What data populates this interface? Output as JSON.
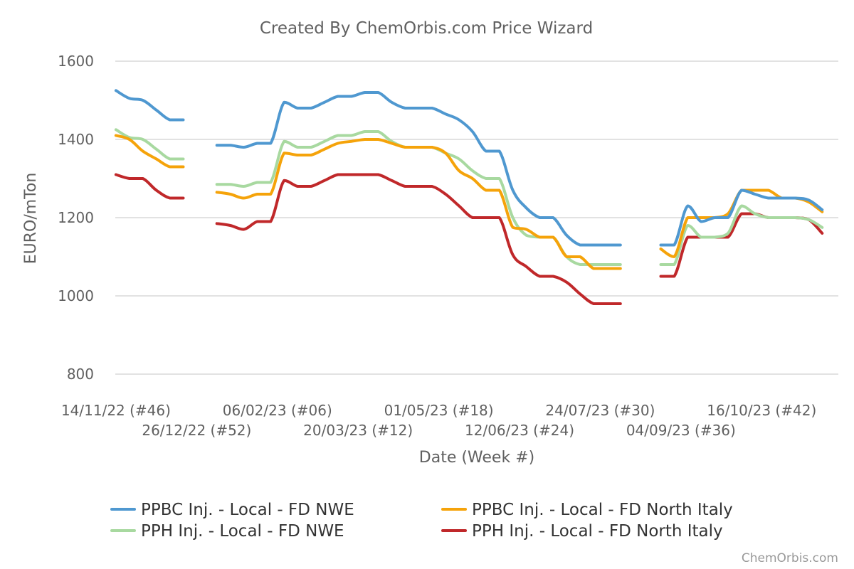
{
  "chart_data": {
    "type": "line",
    "title": "Created By ChemOrbis.com Price Wizard",
    "xlabel": "Date (Week #)",
    "ylabel": "EURO/mTon",
    "credit": "ChemOrbis.com",
    "ylim": [
      800,
      1600
    ],
    "yticks": [
      800,
      1000,
      1200,
      1400,
      1600
    ],
    "grid": true,
    "legend_position": "bottom",
    "x_ticks": [
      {
        "week": 0,
        "label": "14/11/22 (#46)"
      },
      {
        "week": 6,
        "label": "26/12/22 (#52)"
      },
      {
        "week": 12,
        "label": "06/02/23 (#06)"
      },
      {
        "week": 18,
        "label": "20/03/23 (#12)"
      },
      {
        "week": 24,
        "label": "01/05/23 (#18)"
      },
      {
        "week": 30,
        "label": "12/06/23 (#24)"
      },
      {
        "week": 36,
        "label": "24/07/23 (#30)"
      },
      {
        "week": 42,
        "label": "04/09/23 (#36)"
      },
      {
        "week": 48,
        "label": "16/10/23 (#42)"
      }
    ],
    "series": [
      {
        "name": "PPBC Inj. - Local - FD NWE",
        "color": "#4f98d0",
        "segments": [
          [
            [
              0,
              1525
            ],
            [
              1,
              1505
            ],
            [
              2,
              1500
            ],
            [
              3,
              1475
            ],
            [
              4,
              1450
            ],
            [
              5,
              1450
            ]
          ],
          [
            [
              7.5,
              1385
            ],
            [
              8.5,
              1385
            ],
            [
              9.5,
              1380
            ],
            [
              10.5,
              1390
            ],
            [
              11.5,
              1390
            ],
            [
              12.5,
              1495
            ],
            [
              13.5,
              1480
            ],
            [
              14.5,
              1480
            ],
            [
              15.5,
              1495
            ],
            [
              16.5,
              1510
            ],
            [
              17.5,
              1510
            ],
            [
              18.5,
              1520
            ],
            [
              19.5,
              1520
            ],
            [
              20.5,
              1495
            ],
            [
              21.5,
              1480
            ],
            [
              22.5,
              1480
            ],
            [
              23.5,
              1480
            ],
            [
              24.5,
              1465
            ],
            [
              25.5,
              1450
            ],
            [
              26.5,
              1420
            ],
            [
              27.5,
              1370
            ],
            [
              28.5,
              1370
            ],
            [
              29.5,
              1270
            ],
            [
              30.5,
              1225
            ],
            [
              31.5,
              1200
            ],
            [
              32.5,
              1200
            ],
            [
              33.5,
              1155
            ],
            [
              34.5,
              1130
            ],
            [
              35.5,
              1130
            ],
            [
              36.5,
              1130
            ],
            [
              37.5,
              1130
            ]
          ],
          [
            [
              40.5,
              1130
            ],
            [
              41.5,
              1130
            ],
            [
              42.5,
              1230
            ],
            [
              43.5,
              1190
            ],
            [
              44.5,
              1200
            ],
            [
              45.5,
              1200
            ],
            [
              46.5,
              1270
            ],
            [
              47.5,
              1260
            ],
            [
              48.5,
              1250
            ],
            [
              49.5,
              1250
            ],
            [
              50.5,
              1250
            ],
            [
              51.5,
              1245
            ],
            [
              52.5,
              1220
            ]
          ]
        ]
      },
      {
        "name": "PPBC Inj. - Local - FD North Italy",
        "color": "#f5a30a",
        "segments": [
          [
            [
              0,
              1410
            ],
            [
              1,
              1400
            ],
            [
              2,
              1370
            ],
            [
              3,
              1350
            ],
            [
              4,
              1330
            ],
            [
              5,
              1330
            ]
          ],
          [
            [
              7.5,
              1265
            ],
            [
              8.5,
              1260
            ],
            [
              9.5,
              1250
            ],
            [
              10.5,
              1260
            ],
            [
              11.5,
              1260
            ],
            [
              12.5,
              1365
            ],
            [
              13.5,
              1360
            ],
            [
              14.5,
              1360
            ],
            [
              15.5,
              1375
            ],
            [
              16.5,
              1390
            ],
            [
              17.5,
              1395
            ],
            [
              18.5,
              1400
            ],
            [
              19.5,
              1400
            ],
            [
              20.5,
              1390
            ],
            [
              21.5,
              1380
            ],
            [
              22.5,
              1380
            ],
            [
              23.5,
              1380
            ],
            [
              24.5,
              1365
            ],
            [
              25.5,
              1320
            ],
            [
              26.5,
              1300
            ],
            [
              27.5,
              1270
            ],
            [
              28.5,
              1270
            ],
            [
              29.5,
              1175
            ],
            [
              30.5,
              1170
            ],
            [
              31.5,
              1150
            ],
            [
              32.5,
              1150
            ],
            [
              33.5,
              1100
            ],
            [
              34.5,
              1100
            ],
            [
              35.5,
              1070
            ],
            [
              36.5,
              1070
            ],
            [
              37.5,
              1070
            ]
          ],
          [
            [
              40.5,
              1120
            ],
            [
              41.5,
              1100
            ],
            [
              42.5,
              1200
            ],
            [
              43.5,
              1200
            ],
            [
              44.5,
              1200
            ],
            [
              45.5,
              1210
            ],
            [
              46.5,
              1270
            ],
            [
              47.5,
              1270
            ],
            [
              48.5,
              1270
            ],
            [
              49.5,
              1250
            ],
            [
              50.5,
              1250
            ],
            [
              51.5,
              1240
            ],
            [
              52.5,
              1215
            ]
          ]
        ]
      },
      {
        "name": "PPH Inj. - Local - FD NWE",
        "color": "#a8d9a0",
        "segments": [
          [
            [
              0,
              1425
            ],
            [
              1,
              1405
            ],
            [
              2,
              1400
            ],
            [
              3,
              1375
            ],
            [
              4,
              1350
            ],
            [
              5,
              1350
            ]
          ],
          [
            [
              7.5,
              1285
            ],
            [
              8.5,
              1285
            ],
            [
              9.5,
              1280
            ],
            [
              10.5,
              1290
            ],
            [
              11.5,
              1290
            ],
            [
              12.5,
              1395
            ],
            [
              13.5,
              1380
            ],
            [
              14.5,
              1380
            ],
            [
              15.5,
              1395
            ],
            [
              16.5,
              1410
            ],
            [
              17.5,
              1410
            ],
            [
              18.5,
              1420
            ],
            [
              19.5,
              1420
            ],
            [
              20.5,
              1395
            ],
            [
              21.5,
              1380
            ],
            [
              22.5,
              1380
            ],
            [
              23.5,
              1380
            ],
            [
              24.5,
              1365
            ],
            [
              25.5,
              1350
            ],
            [
              26.5,
              1320
            ],
            [
              27.5,
              1300
            ],
            [
              28.5,
              1300
            ],
            [
              29.5,
              1200
            ],
            [
              30.5,
              1155
            ],
            [
              31.5,
              1150
            ],
            [
              32.5,
              1150
            ],
            [
              33.5,
              1100
            ],
            [
              34.5,
              1080
            ],
            [
              35.5,
              1080
            ],
            [
              36.5,
              1080
            ],
            [
              37.5,
              1080
            ]
          ],
          [
            [
              40.5,
              1080
            ],
            [
              41.5,
              1080
            ],
            [
              42.5,
              1180
            ],
            [
              43.5,
              1150
            ],
            [
              44.5,
              1150
            ],
            [
              45.5,
              1160
            ],
            [
              46.5,
              1230
            ],
            [
              47.5,
              1210
            ],
            [
              48.5,
              1200
            ],
            [
              49.5,
              1200
            ],
            [
              50.5,
              1200
            ],
            [
              51.5,
              1195
            ],
            [
              52.5,
              1175
            ]
          ]
        ]
      },
      {
        "name": "PPH Inj. - Local - FD North Italy",
        "color": "#c0282a",
        "segments": [
          [
            [
              0,
              1310
            ],
            [
              1,
              1300
            ],
            [
              2,
              1300
            ],
            [
              3,
              1270
            ],
            [
              4,
              1250
            ],
            [
              5,
              1250
            ]
          ],
          [
            [
              7.5,
              1185
            ],
            [
              8.5,
              1180
            ],
            [
              9.5,
              1170
            ],
            [
              10.5,
              1190
            ],
            [
              11.5,
              1190
            ],
            [
              12.5,
              1295
            ],
            [
              13.5,
              1280
            ],
            [
              14.5,
              1280
            ],
            [
              15.5,
              1295
            ],
            [
              16.5,
              1310
            ],
            [
              17.5,
              1310
            ],
            [
              18.5,
              1310
            ],
            [
              19.5,
              1310
            ],
            [
              20.5,
              1295
            ],
            [
              21.5,
              1280
            ],
            [
              22.5,
              1280
            ],
            [
              23.5,
              1280
            ],
            [
              24.5,
              1260
            ],
            [
              25.5,
              1230
            ],
            [
              26.5,
              1200
            ],
            [
              27.5,
              1200
            ],
            [
              28.5,
              1200
            ],
            [
              29.5,
              1105
            ],
            [
              30.5,
              1075
            ],
            [
              31.5,
              1050
            ],
            [
              32.5,
              1050
            ],
            [
              33.5,
              1035
            ],
            [
              34.5,
              1005
            ],
            [
              35.5,
              980
            ],
            [
              36.5,
              980
            ],
            [
              37.5,
              980
            ]
          ],
          [
            [
              40.5,
              1050
            ],
            [
              41.5,
              1050
            ],
            [
              42.5,
              1150
            ],
            [
              43.5,
              1150
            ],
            [
              44.5,
              1150
            ],
            [
              45.5,
              1150
            ],
            [
              46.5,
              1210
            ],
            [
              47.5,
              1210
            ],
            [
              48.5,
              1200
            ],
            [
              49.5,
              1200
            ],
            [
              50.5,
              1200
            ],
            [
              51.5,
              1195
            ],
            [
              52.5,
              1160
            ]
          ]
        ]
      }
    ]
  }
}
